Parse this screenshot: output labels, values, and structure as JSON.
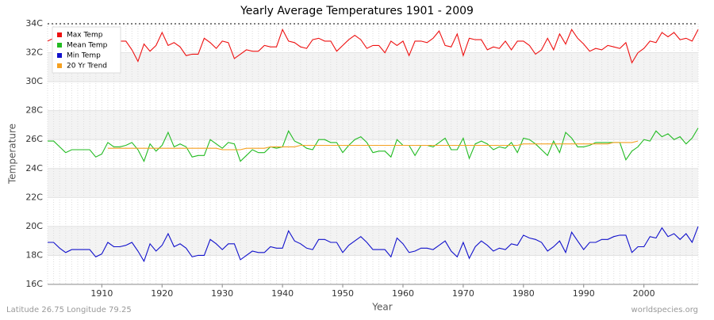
{
  "chart_data": {
    "type": "line",
    "title": "Yearly Average Temperatures 1901 - 2009",
    "x_label": "Year",
    "y_label": "Temperature",
    "footer_left": "Latitude 26.75 Longitude 79.25",
    "footer_right": "worldspecies.org",
    "legend": "top-left",
    "grid": true,
    "x": [
      1901,
      1902,
      1903,
      1904,
      1905,
      1906,
      1907,
      1908,
      1909,
      1910,
      1911,
      1912,
      1913,
      1914,
      1915,
      1916,
      1917,
      1918,
      1919,
      1920,
      1921,
      1922,
      1923,
      1924,
      1925,
      1926,
      1927,
      1928,
      1929,
      1930,
      1931,
      1932,
      1933,
      1934,
      1935,
      1936,
      1937,
      1938,
      1939,
      1940,
      1941,
      1942,
      1943,
      1944,
      1945,
      1946,
      1947,
      1948,
      1949,
      1950,
      1951,
      1952,
      1953,
      1954,
      1955,
      1956,
      1957,
      1958,
      1959,
      1960,
      1961,
      1962,
      1963,
      1964,
      1965,
      1966,
      1967,
      1968,
      1969,
      1970,
      1971,
      1972,
      1973,
      1974,
      1975,
      1976,
      1977,
      1978,
      1979,
      1980,
      1981,
      1982,
      1983,
      1984,
      1985,
      1986,
      1987,
      1988,
      1989,
      1990,
      1991,
      1992,
      1993,
      1994,
      1995,
      1996,
      1997,
      1998,
      1999,
      2000,
      2001,
      2002,
      2003,
      2004,
      2005,
      2006,
      2007,
      2008,
      2009
    ],
    "xlim": [
      1901,
      2009
    ],
    "xticks": [
      1910,
      1920,
      1930,
      1940,
      1950,
      1960,
      1970,
      1980,
      1990,
      2000
    ],
    "ylim": [
      16,
      34
    ],
    "yticks": [
      {
        "value": 16,
        "label": "16C"
      },
      {
        "value": 18,
        "label": "18C"
      },
      {
        "value": 20,
        "label": "20C"
      },
      {
        "value": 22,
        "label": "22C"
      },
      {
        "value": 24,
        "label": "24C"
      },
      {
        "value": 26,
        "label": "26C"
      },
      {
        "value": 28,
        "label": "28C"
      },
      {
        "value": 30,
        "label": "30C"
      },
      {
        "value": 32,
        "label": "32C"
      },
      {
        "value": 34,
        "label": "34C"
      }
    ],
    "series": [
      {
        "name": "Max Temp",
        "color": "#ee1111",
        "values": [
          32.8,
          33.0,
          32.4,
          32.3,
          32.6,
          32.5,
          32.4,
          32.5,
          32.3,
          32.6,
          32.7,
          32.6,
          32.8,
          32.8,
          32.2,
          31.4,
          32.6,
          32.1,
          32.5,
          33.4,
          32.5,
          32.7,
          32.4,
          31.8,
          31.9,
          31.9,
          33.0,
          32.7,
          32.3,
          32.8,
          32.7,
          31.6,
          31.9,
          32.2,
          32.1,
          32.1,
          32.5,
          32.4,
          32.4,
          33.6,
          32.8,
          32.7,
          32.4,
          32.3,
          32.9,
          33.0,
          32.8,
          32.8,
          32.1,
          32.5,
          32.9,
          33.2,
          32.9,
          32.3,
          32.5,
          32.5,
          32.0,
          32.8,
          32.5,
          32.8,
          31.8,
          32.8,
          32.8,
          32.7,
          33.0,
          33.5,
          32.5,
          32.4,
          33.3,
          31.8,
          33.0,
          32.9,
          32.9,
          32.2,
          32.4,
          32.3,
          32.8,
          32.2,
          32.8,
          32.8,
          32.5,
          31.9,
          32.2,
          33.0,
          32.2,
          33.3,
          32.6,
          33.6,
          33.0,
          32.6,
          32.1,
          32.3,
          32.2,
          32.5,
          32.4,
          32.3,
          32.7,
          31.3,
          32.0,
          32.3,
          32.8,
          32.7,
          33.4,
          33.1,
          33.4,
          32.9,
          33.0,
          32.8,
          33.6
        ]
      },
      {
        "name": "Mean Temp",
        "color": "#22bb22",
        "values": [
          25.9,
          25.9,
          25.5,
          25.1,
          25.3,
          25.3,
          25.3,
          25.3,
          24.8,
          25.0,
          25.8,
          25.5,
          25.5,
          25.6,
          25.8,
          25.3,
          24.5,
          25.7,
          25.2,
          25.6,
          26.5,
          25.5,
          25.7,
          25.5,
          24.8,
          24.9,
          24.9,
          26.0,
          25.7,
          25.4,
          25.8,
          25.7,
          24.5,
          24.9,
          25.3,
          25.1,
          25.1,
          25.5,
          25.4,
          25.5,
          26.6,
          25.9,
          25.7,
          25.4,
          25.3,
          26.0,
          26.0,
          25.8,
          25.8,
          25.1,
          25.6,
          26.0,
          26.2,
          25.8,
          25.1,
          25.2,
          25.2,
          24.8,
          26.0,
          25.6,
          25.6,
          24.9,
          25.6,
          25.6,
          25.5,
          25.8,
          26.1,
          25.3,
          25.3,
          26.1,
          24.7,
          25.7,
          25.9,
          25.7,
          25.3,
          25.5,
          25.4,
          25.8,
          25.1,
          26.1,
          26.0,
          25.7,
          25.3,
          24.9,
          25.9,
          25.1,
          26.5,
          26.1,
          25.5,
          25.5,
          25.6,
          25.8,
          25.8,
          25.8,
          25.8,
          25.8,
          24.6,
          25.2,
          25.5,
          26.0,
          25.9,
          26.6,
          26.2,
          26.4,
          26.0,
          26.2,
          25.7,
          26.1,
          26.8
        ]
      },
      {
        "name": "Min Temp",
        "color": "#1111cc",
        "values": [
          18.9,
          18.9,
          18.5,
          18.2,
          18.4,
          18.4,
          18.4,
          18.4,
          17.9,
          18.1,
          18.9,
          18.6,
          18.6,
          18.7,
          18.9,
          18.3,
          17.6,
          18.8,
          18.3,
          18.7,
          19.5,
          18.6,
          18.8,
          18.5,
          17.9,
          18.0,
          18.0,
          19.1,
          18.8,
          18.4,
          18.8,
          18.8,
          17.7,
          18.0,
          18.3,
          18.2,
          18.2,
          18.6,
          18.5,
          18.5,
          19.7,
          19.0,
          18.8,
          18.5,
          18.4,
          19.1,
          19.1,
          18.9,
          18.9,
          18.2,
          18.7,
          19.0,
          19.3,
          18.9,
          18.4,
          18.4,
          18.4,
          17.9,
          19.2,
          18.8,
          18.2,
          18.3,
          18.5,
          18.5,
          18.4,
          18.7,
          19.0,
          18.3,
          17.9,
          18.9,
          17.8,
          18.6,
          19.0,
          18.7,
          18.3,
          18.5,
          18.4,
          18.8,
          18.7,
          19.4,
          19.2,
          19.1,
          18.9,
          18.3,
          18.6,
          19.0,
          18.2,
          19.6,
          19.0,
          18.4,
          18.9,
          18.9,
          19.1,
          19.1,
          19.3,
          19.4,
          19.4,
          18.2,
          18.6,
          18.6,
          19.3,
          19.2,
          19.9,
          19.3,
          19.5,
          19.1,
          19.5,
          18.9,
          20.0
        ]
      },
      {
        "name": "20 Yr Trend",
        "color": "#f5a020",
        "values": [
          null,
          null,
          null,
          null,
          null,
          null,
          null,
          null,
          null,
          null,
          25.4,
          25.4,
          25.4,
          25.4,
          25.4,
          25.4,
          25.4,
          25.4,
          25.4,
          25.4,
          25.4,
          25.4,
          25.4,
          25.4,
          25.4,
          25.4,
          25.4,
          25.4,
          25.4,
          25.3,
          25.3,
          25.3,
          25.3,
          25.4,
          25.4,
          25.4,
          25.4,
          25.5,
          25.5,
          25.5,
          25.5,
          25.5,
          25.6,
          25.6,
          25.6,
          25.6,
          25.6,
          25.6,
          25.6,
          25.6,
          25.6,
          25.6,
          25.6,
          25.6,
          25.6,
          25.6,
          25.6,
          25.6,
          25.6,
          25.6,
          25.6,
          25.6,
          25.6,
          25.6,
          25.6,
          25.6,
          25.6,
          25.6,
          25.6,
          25.6,
          25.6,
          25.6,
          25.6,
          25.6,
          25.6,
          25.6,
          25.6,
          25.6,
          25.6,
          25.7,
          25.7,
          25.7,
          25.7,
          25.7,
          25.7,
          25.7,
          25.7,
          25.7,
          25.7,
          25.7,
          25.7,
          25.7,
          25.7,
          25.7,
          25.8,
          25.8,
          25.8,
          25.8,
          25.9,
          null,
          null,
          null,
          null,
          null,
          null,
          null,
          null,
          null,
          null
        ]
      }
    ]
  }
}
